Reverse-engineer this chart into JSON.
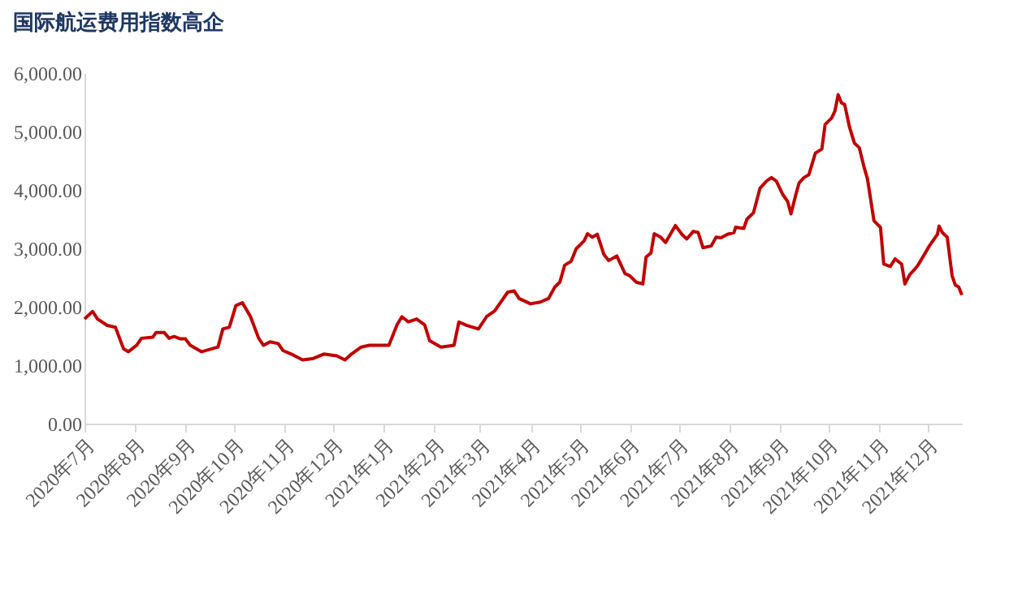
{
  "chart_data": {
    "type": "line",
    "title": "国际航运费用指数高企",
    "x": [
      "2020-07-01",
      "2020-07-06",
      "2020-07-09",
      "2020-07-15",
      "2020-07-20",
      "2020-07-25",
      "2020-07-28",
      "2020-08-02",
      "2020-08-05",
      "2020-08-12",
      "2020-08-14",
      "2020-08-19",
      "2020-08-22",
      "2020-08-25",
      "2020-08-29",
      "2020-09-01",
      "2020-09-04",
      "2020-09-11",
      "2020-09-21",
      "2020-09-24",
      "2020-09-28",
      "2020-10-02",
      "2020-10-06",
      "2020-10-11",
      "2020-10-16",
      "2020-10-19",
      "2020-10-23",
      "2020-10-28",
      "2020-10-31",
      "2020-11-05",
      "2020-11-12",
      "2020-11-18",
      "2020-11-25",
      "2020-12-03",
      "2020-12-08",
      "2020-12-12",
      "2020-12-18",
      "2020-12-23",
      "2020-12-30",
      "2021-01-04",
      "2021-01-09",
      "2021-01-12",
      "2021-01-16",
      "2021-01-21",
      "2021-01-26",
      "2021-01-29",
      "2021-02-05",
      "2021-02-13",
      "2021-02-16",
      "2021-02-21",
      "2021-02-28",
      "2021-03-05",
      "2021-03-10",
      "2021-03-18",
      "2021-03-22",
      "2021-03-25",
      "2021-04-01",
      "2021-04-07",
      "2021-04-12",
      "2021-04-16",
      "2021-04-19",
      "2021-04-22",
      "2021-04-26",
      "2021-04-29",
      "2021-05-04",
      "2021-05-06",
      "2021-05-09",
      "2021-05-12",
      "2021-05-16",
      "2021-05-19",
      "2021-05-24",
      "2021-05-29",
      "2021-06-01",
      "2021-06-05",
      "2021-06-09",
      "2021-06-11",
      "2021-06-14",
      "2021-06-16",
      "2021-06-20",
      "2021-06-23",
      "2021-06-29",
      "2021-07-03",
      "2021-07-06",
      "2021-07-10",
      "2021-07-13",
      "2021-07-16",
      "2021-07-21",
      "2021-07-24",
      "2021-07-27",
      "2021-07-31",
      "2021-08-04",
      "2021-08-05",
      "2021-08-10",
      "2021-08-12",
      "2021-08-16",
      "2021-08-20",
      "2021-08-24",
      "2021-08-27",
      "2021-08-30",
      "2021-09-03",
      "2021-09-06",
      "2021-09-08",
      "2021-09-11",
      "2021-09-13",
      "2021-09-16",
      "2021-09-19",
      "2021-09-23",
      "2021-09-27",
      "2021-09-29",
      "2021-10-03",
      "2021-10-05",
      "2021-10-07",
      "2021-10-09",
      "2021-10-11",
      "2021-10-14",
      "2021-10-17",
      "2021-10-20",
      "2021-10-23",
      "2021-10-25",
      "2021-10-29",
      "2021-11-02",
      "2021-11-04",
      "2021-11-08",
      "2021-11-11",
      "2021-11-15",
      "2021-11-17",
      "2021-11-20",
      "2021-11-23",
      "2021-11-25",
      "2021-11-28",
      "2021-12-02",
      "2021-12-07",
      "2021-12-08",
      "2021-12-10",
      "2021-12-13",
      "2021-12-16",
      "2021-12-18",
      "2021-12-20",
      "2021-12-22"
    ],
    "series": [
      {
        "color": "#c00000",
        "values": [
          1790,
          1920,
          1790,
          1680,
          1650,
          1280,
          1230,
          1340,
          1460,
          1480,
          1560,
          1560,
          1460,
          1490,
          1450,
          1450,
          1340,
          1230,
          1310,
          1620,
          1650,
          2020,
          2070,
          1830,
          1460,
          1340,
          1400,
          1370,
          1250,
          1190,
          1090,
          1110,
          1190,
          1160,
          1090,
          1190,
          1310,
          1340,
          1340,
          1340,
          1690,
          1830,
          1740,
          1790,
          1690,
          1420,
          1310,
          1340,
          1740,
          1680,
          1620,
          1830,
          1930,
          2250,
          2270,
          2140,
          2050,
          2080,
          2140,
          2340,
          2420,
          2710,
          2780,
          2990,
          3130,
          3250,
          3190,
          3240,
          2900,
          2790,
          2870,
          2570,
          2530,
          2420,
          2390,
          2850,
          2920,
          3250,
          3190,
          3100,
          3390,
          3240,
          3160,
          3290,
          3270,
          3010,
          3040,
          3190,
          3180,
          3240,
          3270,
          3360,
          3340,
          3500,
          3610,
          4030,
          4150,
          4210,
          4150,
          3920,
          3800,
          3590,
          3920,
          4120,
          4210,
          4260,
          4630,
          4700,
          5120,
          5230,
          5350,
          5630,
          5490,
          5460,
          5070,
          4800,
          4720,
          4380,
          4190,
          3470,
          3360,
          2730,
          2690,
          2820,
          2730,
          2390,
          2550,
          2640,
          2710,
          2850,
          3040,
          3240,
          3380,
          3270,
          3190,
          2530,
          2370,
          2340,
          2200
        ]
      }
    ],
    "xlim": [
      "2020-07-01",
      "2021-12-22"
    ],
    "xticks": [
      {
        "value": "2020-07-01",
        "label": "2020年7月"
      },
      {
        "value": "2020-08-01",
        "label": "2020年8月"
      },
      {
        "value": "2020-09-01",
        "label": "2020年9月"
      },
      {
        "value": "2020-10-01",
        "label": "2020年10月"
      },
      {
        "value": "2020-11-01",
        "label": "2020年11月"
      },
      {
        "value": "2020-12-01",
        "label": "2020年12月"
      },
      {
        "value": "2021-01-01",
        "label": "2021年1月"
      },
      {
        "value": "2021-02-01",
        "label": "2021年2月"
      },
      {
        "value": "2021-03-01",
        "label": "2021年3月"
      },
      {
        "value": "2021-04-01",
        "label": "2021年4月"
      },
      {
        "value": "2021-05-01",
        "label": "2021年5月"
      },
      {
        "value": "2021-06-01",
        "label": "2021年6月"
      },
      {
        "value": "2021-07-01",
        "label": "2021年7月"
      },
      {
        "value": "2021-08-01",
        "label": "2021年8月"
      },
      {
        "value": "2021-09-01",
        "label": "2021年9月"
      },
      {
        "value": "2021-10-01",
        "label": "2021年10月"
      },
      {
        "value": "2021-11-01",
        "label": "2021年11月"
      },
      {
        "value": "2021-12-01",
        "label": "2021年12月"
      }
    ],
    "ylim": [
      0,
      6000
    ],
    "yticks": [
      {
        "value": 0,
        "label": "0.00"
      },
      {
        "value": 1000,
        "label": "1,000.00"
      },
      {
        "value": 2000,
        "label": "2,000.00"
      },
      {
        "value": 3000,
        "label": "3,000.00"
      },
      {
        "value": 4000,
        "label": "4,000.00"
      },
      {
        "value": 5000,
        "label": "5,000.00"
      },
      {
        "value": 6000,
        "label": "6,000.00"
      }
    ],
    "grid": false,
    "legend": false,
    "marker": "none",
    "line_style": "solid"
  }
}
